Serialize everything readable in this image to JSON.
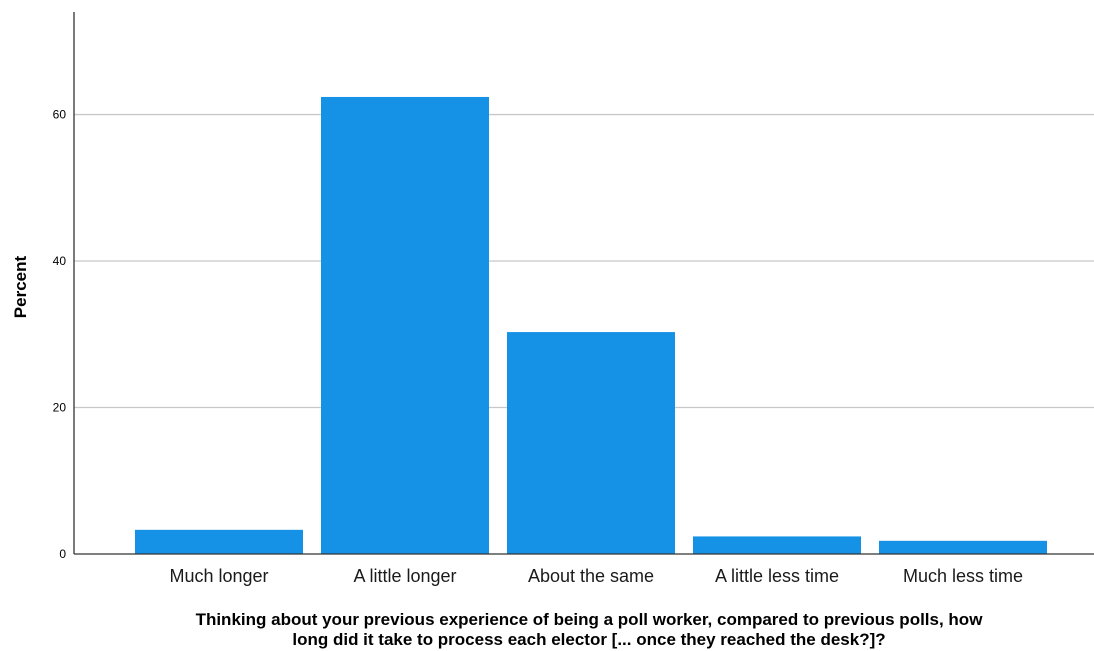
{
  "chart_data": {
    "type": "bar",
    "categories": [
      "Much longer",
      "A little longer",
      "About the same",
      "A little less time",
      "Much less time"
    ],
    "values": [
      3.3,
      62.4,
      30.3,
      2.4,
      1.8
    ],
    "ylabel": "Percent",
    "xlabel_lines": [
      "Thinking about your previous experience of being a poll worker, compared to previous polls, how",
      "long did it take to process each elector [... once they reached the desk?]?"
    ],
    "yticks": [
      0,
      20,
      40,
      60
    ],
    "ylim": [
      0,
      74
    ],
    "grid": true,
    "bar_color": "#1591e6",
    "grid_color": "#c8c8c8",
    "axis_color": "#333333"
  }
}
